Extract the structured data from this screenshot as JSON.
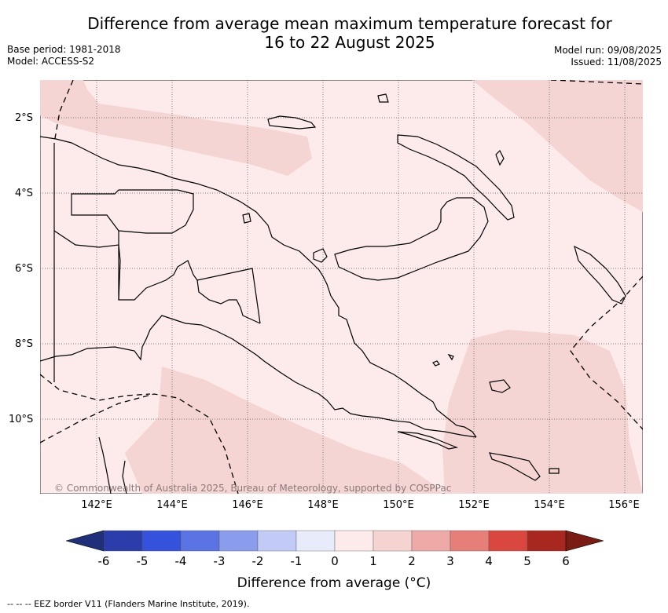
{
  "title_line1": "Difference from average mean maximum temperature forecast for",
  "title_line2": "16 to 22 August 2025",
  "base_period": "Base period: 1981-2018",
  "model": "Model: ACCESS-S2",
  "model_run": "Model run: 09/08/2025",
  "issued": "Issued: 11/08/2025",
  "credit": "© Commonwealth of Australia 2025, Bureau of Meteorology, supported by COSPPac",
  "lat_labels": [
    "2°S",
    "4°S",
    "6°S",
    "8°S",
    "10°S"
  ],
  "lon_labels": [
    "142°E",
    "144°E",
    "146°E",
    "148°E",
    "150°E",
    "152°E",
    "154°E",
    "156°E"
  ],
  "colorbar": {
    "ticks": [
      "-6",
      "-5",
      "-4",
      "-3",
      "-2",
      "-1",
      "0",
      "1",
      "2",
      "3",
      "4",
      "5",
      "6"
    ],
    "colors": [
      "#2a3daa",
      "#3452dc",
      "#5b74e4",
      "#8a9cec",
      "#c2cbf5",
      "#e8ecfa",
      "#fcebea",
      "#f5d3d1",
      "#eeaaa6",
      "#e57f78",
      "#d9473f",
      "#a8281f"
    ],
    "under_color": "#1f2f7a",
    "over_color": "#7a1c14",
    "label": "Difference from average (°C)"
  },
  "footnote": "-- -- -- EEZ border V11 (Flanders Marine Institute, 2019).",
  "map": {
    "background_category": "0 to 1",
    "background_color": "#fcebea",
    "warm_patch_category": "1 to 2",
    "warm_patch_color": "#f5d5d3"
  }
}
